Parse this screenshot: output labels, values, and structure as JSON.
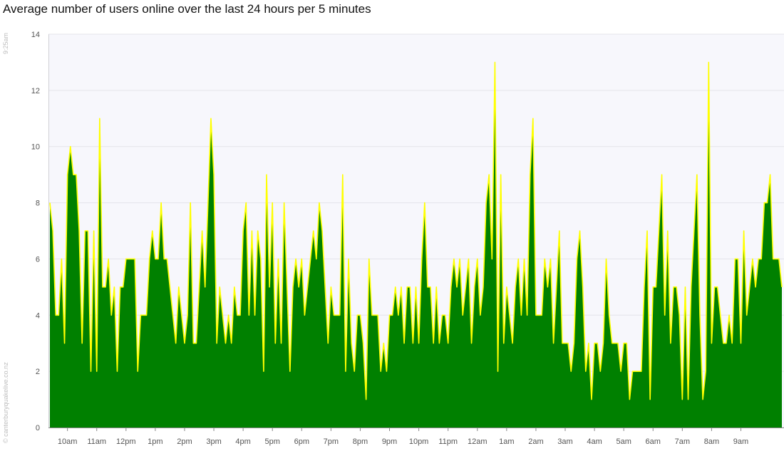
{
  "chart_data": {
    "type": "area",
    "title": "Average number of users online over the last 24 hours per 5 minutes",
    "side_labels": {
      "time": "9:25am",
      "copyright": "© canterburyquakelive.co.nz"
    },
    "xlabel": "",
    "ylabel": "",
    "ylim": [
      0,
      14
    ],
    "yticks": [
      0,
      2,
      4,
      6,
      8,
      10,
      12,
      14
    ],
    "x_tick_labels": [
      "10am",
      "11am",
      "12pm",
      "1pm",
      "2pm",
      "3pm",
      "4pm",
      "5pm",
      "6pm",
      "7pm",
      "8pm",
      "9pm",
      "10pm",
      "11pm",
      "12am",
      "1am",
      "2am",
      "3am",
      "4am",
      "5am",
      "6am",
      "7am",
      "8am",
      "9am"
    ],
    "x_tick_index": [
      6,
      16,
      26,
      36,
      46,
      56,
      66,
      76,
      86,
      96,
      106,
      116,
      126,
      136,
      146,
      156,
      166,
      176,
      186,
      196,
      206,
      216,
      226,
      236
    ],
    "grid": true,
    "colors": {
      "fill": "#008000",
      "line": "#ffff00",
      "plot_background": "#f7f7fc"
    },
    "values": [
      8,
      7,
      4,
      4,
      6,
      3,
      9,
      10,
      9,
      9,
      7,
      3,
      7,
      7,
      2,
      7,
      2,
      11,
      5,
      5,
      6,
      4,
      5,
      2,
      5,
      5,
      6,
      6,
      6,
      6,
      2,
      4,
      4,
      4,
      6,
      7,
      6,
      6,
      8,
      6,
      6,
      5,
      4,
      3,
      5,
      4,
      3,
      4,
      8,
      3,
      3,
      5,
      7,
      5,
      8,
      11,
      9,
      3,
      5,
      4,
      3,
      4,
      3,
      5,
      4,
      4,
      7,
      8,
      4,
      7,
      4,
      7,
      6,
      2,
      9,
      5,
      8,
      3,
      6,
      3,
      8,
      5,
      2,
      5,
      6,
      5,
      6,
      4,
      5,
      6,
      7,
      6,
      8,
      7,
      5,
      3,
      5,
      4,
      4,
      4,
      9,
      2,
      6,
      3,
      2,
      4,
      4,
      3,
      1,
      6,
      4,
      4,
      4,
      2,
      3,
      2,
      4,
      4,
      5,
      4,
      5,
      3,
      5,
      5,
      3,
      5,
      3,
      6,
      8,
      5,
      5,
      3,
      5,
      3,
      4,
      4,
      3,
      5,
      6,
      5,
      6,
      4,
      5,
      6,
      3,
      5,
      6,
      4,
      5,
      8,
      9,
      6,
      13,
      2,
      9,
      3,
      5,
      4,
      3,
      5,
      6,
      4,
      6,
      4,
      9,
      11,
      4,
      4,
      4,
      6,
      5,
      6,
      3,
      5,
      7,
      3,
      3,
      3,
      2,
      3,
      6,
      7,
      5,
      2,
      3,
      1,
      3,
      3,
      2,
      3,
      6,
      4,
      3,
      3,
      3,
      2,
      3,
      3,
      1,
      2,
      2,
      2,
      2,
      5,
      7,
      1,
      5,
      5,
      7,
      9,
      4,
      7,
      3,
      5,
      5,
      4,
      1,
      5,
      1,
      5,
      7,
      9,
      4,
      1,
      2,
      13,
      3,
      5,
      5,
      4,
      3,
      3,
      4,
      3,
      6,
      6,
      3,
      7,
      4,
      5,
      6,
      5,
      6,
      6,
      8,
      8,
      9,
      6,
      6,
      6,
      5
    ]
  }
}
